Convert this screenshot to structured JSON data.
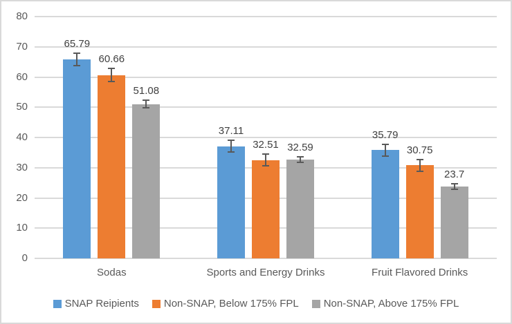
{
  "chart_data": {
    "type": "bar",
    "categories": [
      "Sodas",
      "Sports and Energy Drinks",
      "Fruit Flavored Drinks"
    ],
    "series": [
      {
        "name": "SNAP Reipients",
        "color": "#5B9BD5",
        "values": [
          65.79,
          37.11,
          35.79
        ],
        "labels": [
          "65.79",
          "37.11",
          "35.79"
        ],
        "errors": [
          2.1,
          1.9,
          2.0
        ]
      },
      {
        "name": "Non-SNAP, Below 175% FPL",
        "color": "#ED7D31",
        "values": [
          60.66,
          32.51,
          30.75
        ],
        "labels": [
          "60.66",
          "32.51",
          "30.75"
        ],
        "errors": [
          2.1,
          1.9,
          2.0
        ]
      },
      {
        "name": "Non-SNAP, Above 175% FPL",
        "color": "#A5A5A5",
        "values": [
          51.08,
          32.59,
          23.7
        ],
        "labels": [
          "51.08",
          "32.59",
          "23.7"
        ],
        "errors": [
          1.3,
          0.9,
          0.9
        ]
      }
    ],
    "title": "",
    "xlabel": "",
    "ylabel": "",
    "ylim": [
      0,
      80
    ],
    "yticks": [
      0,
      10,
      20,
      30,
      40,
      50,
      60,
      70,
      80
    ],
    "grid": true,
    "error_bars": true,
    "legend_position": "bottom",
    "colors": {
      "gridline": "#D9D9D9",
      "frame_border": "#D9D9D9",
      "axis_text": "#595959",
      "data_label_text": "#404040",
      "error_bar": "#595959",
      "background": "#FFFFFF"
    }
  }
}
